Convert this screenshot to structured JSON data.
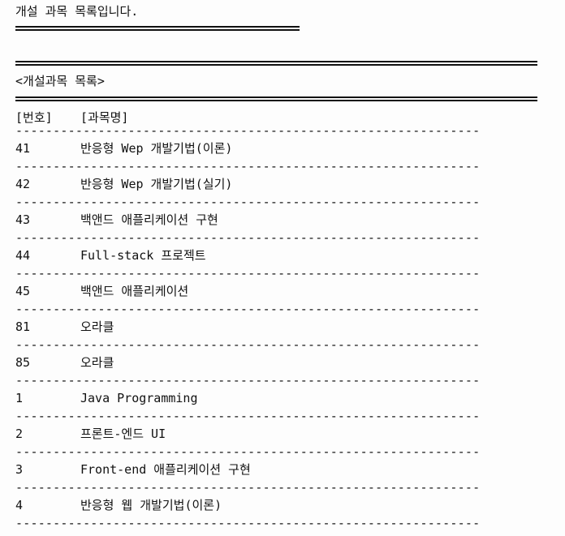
{
  "intro_text": "개설 과목 목록입니다.",
  "list_title": "<개설과목 목록>",
  "header": {
    "number": "[번호]",
    "name": "[과목명]"
  },
  "separator": "--------------------------------------------------------------",
  "courses": [
    {
      "number": "41",
      "name": "반응형 Wep 개발기법(이론)"
    },
    {
      "number": "42",
      "name": "반응형 Wep 개발기법(실기)"
    },
    {
      "number": "43",
      "name": "백앤드 애플리케이션 구현"
    },
    {
      "number": "44",
      "name": "Full-stack 프로젝트"
    },
    {
      "number": "45",
      "name": "백앤드 애플리케이션"
    },
    {
      "number": "81",
      "name": "오라클"
    },
    {
      "number": "85",
      "name": "오라클"
    },
    {
      "number": "1",
      "name": "Java Programming"
    },
    {
      "number": "2",
      "name": "프론트-엔드 UI"
    },
    {
      "number": "3",
      "name": "Front-end 애플리케이션 구현"
    },
    {
      "number": "4",
      "name": "반응형 웹 개발기법(이론)"
    }
  ]
}
